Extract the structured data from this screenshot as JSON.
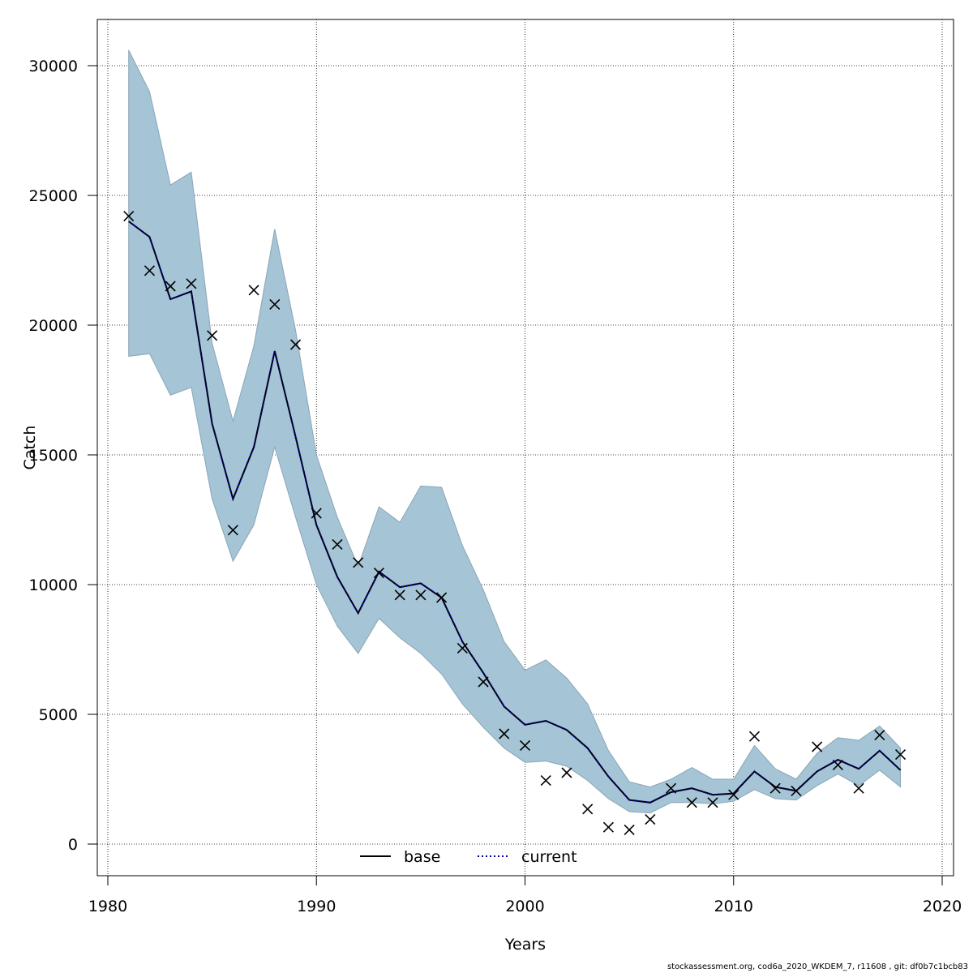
{
  "chart_data": {
    "type": "line",
    "title": "",
    "xlabel": "Years",
    "ylabel": "Catch",
    "xlim": [
      1980,
      2020
    ],
    "ylim": [
      0,
      30000
    ],
    "x_ticks": [
      1980,
      1990,
      2000,
      2010,
      2020
    ],
    "y_ticks": [
      0,
      5000,
      10000,
      15000,
      20000,
      25000,
      30000
    ],
    "grid": true,
    "legend_position": "bottom-center",
    "years": [
      1981,
      1982,
      1983,
      1984,
      1985,
      1986,
      1987,
      1988,
      1989,
      1990,
      1991,
      1992,
      1993,
      1994,
      1995,
      1996,
      1997,
      1998,
      1999,
      2000,
      2001,
      2002,
      2003,
      2004,
      2005,
      2006,
      2007,
      2008,
      2009,
      2010,
      2011,
      2012,
      2013,
      2014,
      2015,
      2016,
      2017,
      2018
    ],
    "series": [
      {
        "name": "base",
        "style": "solid",
        "color": "#000000",
        "values": [
          24000,
          23400,
          21000,
          21300,
          16200,
          13300,
          15300,
          19000,
          15700,
          12300,
          10300,
          8900,
          10500,
          9900,
          10050,
          9500,
          7800,
          6600,
          5300,
          4600,
          4750,
          4400,
          3700,
          2600,
          1700,
          1600,
          2000,
          2150,
          1900,
          1950,
          2800,
          2200,
          2050,
          2800,
          3250,
          2900,
          3600,
          2850
        ]
      },
      {
        "name": "current",
        "style": "dotted",
        "color": "#00008b",
        "values": [
          24000,
          23400,
          21000,
          21300,
          16200,
          13300,
          15300,
          19000,
          15700,
          12300,
          10300,
          8900,
          10500,
          9900,
          10050,
          9500,
          7800,
          6600,
          5300,
          4600,
          4750,
          4400,
          3700,
          2600,
          1700,
          1600,
          2000,
          2150,
          1900,
          1950,
          2800,
          2200,
          2050,
          2800,
          3250,
          2900,
          3600,
          2850
        ]
      }
    ],
    "confidence_band": {
      "color": "#a5c4d6",
      "upper": [
        30600,
        29000,
        25400,
        25900,
        19300,
        16300,
        19200,
        23700,
        19800,
        15000,
        12600,
        10700,
        13000,
        12400,
        13800,
        13750,
        11500,
        9800,
        7800,
        6700,
        7100,
        6400,
        5400,
        3600,
        2400,
        2200,
        2500,
        2950,
        2500,
        2500,
        3800,
        2900,
        2500,
        3500,
        4100,
        4000,
        4550,
        3700
      ],
      "lower": [
        18800,
        18900,
        17300,
        17600,
        13300,
        10900,
        12300,
        15300,
        12600,
        10000,
        8400,
        7350,
        8700,
        7950,
        7350,
        6550,
        5400,
        4500,
        3700,
        3150,
        3200,
        3000,
        2450,
        1750,
        1250,
        1200,
        1600,
        1600,
        1550,
        1650,
        2100,
        1750,
        1700,
        2250,
        2700,
        2250,
        2850,
        2200
      ]
    },
    "observations": {
      "marker": "x",
      "values": [
        24200,
        22100,
        21500,
        21600,
        19600,
        12100,
        21350,
        20800,
        19250,
        12750,
        11550,
        10850,
        10450,
        9600,
        9600,
        9500,
        7550,
        6250,
        4250,
        3800,
        2450,
        2750,
        1350,
        650,
        550,
        950,
        2150,
        1600,
        1600,
        1900,
        4150,
        2150,
        2050,
        3750,
        3050,
        2150,
        4200,
        3450
      ]
    }
  },
  "footer": "stockassessment.org, cod6a_2020_WKDEM_7, r11608 , git: df0b7c1bcb83"
}
